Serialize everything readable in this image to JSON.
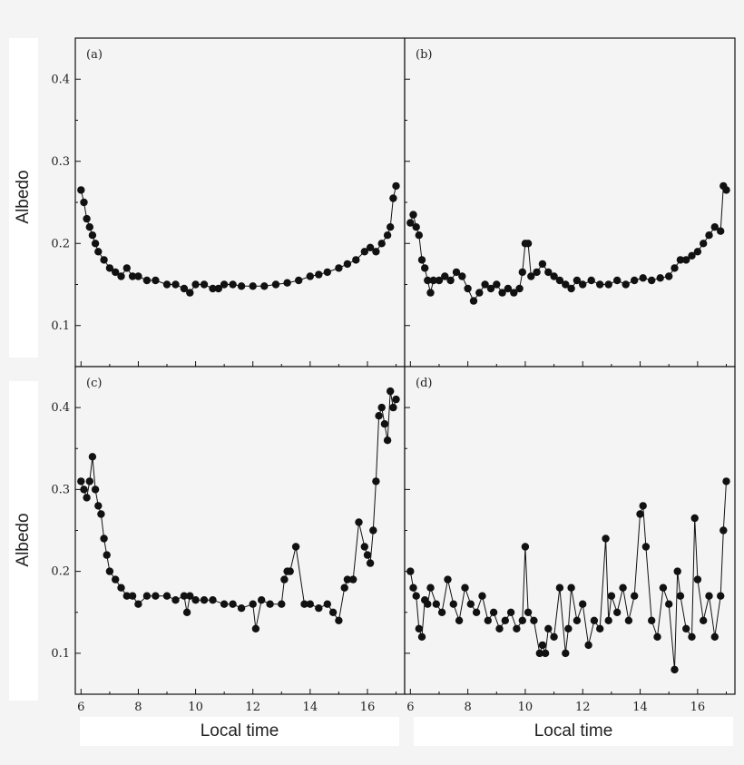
{
  "figure": {
    "ylabel_top": "Albedo",
    "ylabel_bottom": "Albedo",
    "xlabel_left": "Local time",
    "xlabel_right": "Local time"
  },
  "chart_data": [
    {
      "type": "line",
      "panel": "(a)",
      "xlim": [
        5.8,
        17.3
      ],
      "ylim": [
        0.05,
        0.45
      ],
      "xticks": [
        "6",
        "8",
        "10",
        "12",
        "14",
        "16"
      ],
      "yticks": [
        "0.1",
        "0.2",
        "0.3",
        "0.4"
      ],
      "marker": "filled-circle",
      "series": [
        {
          "x": [
            6.0,
            6.1,
            6.2,
            6.3,
            6.4,
            6.5,
            6.6,
            6.8,
            7.0,
            7.2,
            7.4,
            7.6,
            7.8,
            8.0,
            8.3,
            8.6,
            9.0,
            9.3,
            9.6,
            9.8,
            10.0,
            10.3,
            10.6,
            10.8,
            11.0,
            11.3,
            11.6,
            12.0,
            12.4,
            12.8,
            13.2,
            13.6,
            14.0,
            14.3,
            14.6,
            15.0,
            15.3,
            15.6,
            15.9,
            16.1,
            16.3,
            16.5,
            16.7,
            16.8,
            16.9,
            17.0
          ],
          "y": [
            0.265,
            0.25,
            0.23,
            0.22,
            0.21,
            0.2,
            0.19,
            0.18,
            0.17,
            0.165,
            0.16,
            0.17,
            0.16,
            0.16,
            0.155,
            0.155,
            0.15,
            0.15,
            0.145,
            0.14,
            0.15,
            0.15,
            0.145,
            0.145,
            0.15,
            0.15,
            0.148,
            0.148,
            0.148,
            0.15,
            0.152,
            0.155,
            0.16,
            0.162,
            0.165,
            0.17,
            0.175,
            0.18,
            0.19,
            0.195,
            0.19,
            0.2,
            0.21,
            0.22,
            0.255,
            0.27
          ]
        }
      ]
    },
    {
      "type": "line",
      "panel": "(b)",
      "xlim": [
        5.8,
        17.3
      ],
      "ylim": [
        0.05,
        0.45
      ],
      "xticks": [
        "6",
        "8",
        "10",
        "12",
        "14",
        "16"
      ],
      "yticks": [],
      "marker": "filled-circle",
      "series": [
        {
          "x": [
            6.0,
            6.1,
            6.2,
            6.3,
            6.4,
            6.5,
            6.6,
            6.7,
            6.8,
            7.0,
            7.2,
            7.4,
            7.6,
            7.8,
            8.0,
            8.2,
            8.4,
            8.6,
            8.8,
            9.0,
            9.2,
            9.4,
            9.6,
            9.8,
            9.9,
            10.0,
            10.1,
            10.2,
            10.4,
            10.6,
            10.8,
            11.0,
            11.2,
            11.4,
            11.6,
            11.8,
            12.0,
            12.3,
            12.6,
            12.9,
            13.2,
            13.5,
            13.8,
            14.1,
            14.4,
            14.7,
            15.0,
            15.2,
            15.4,
            15.6,
            15.8,
            16.0,
            16.2,
            16.4,
            16.6,
            16.8,
            16.9,
            17.0
          ],
          "y": [
            0.225,
            0.235,
            0.22,
            0.21,
            0.18,
            0.17,
            0.155,
            0.14,
            0.155,
            0.155,
            0.16,
            0.155,
            0.165,
            0.16,
            0.145,
            0.13,
            0.14,
            0.15,
            0.145,
            0.15,
            0.14,
            0.145,
            0.14,
            0.145,
            0.165,
            0.2,
            0.2,
            0.16,
            0.165,
            0.175,
            0.165,
            0.16,
            0.155,
            0.15,
            0.145,
            0.155,
            0.15,
            0.155,
            0.15,
            0.15,
            0.155,
            0.15,
            0.155,
            0.158,
            0.155,
            0.158,
            0.16,
            0.17,
            0.18,
            0.18,
            0.185,
            0.19,
            0.2,
            0.21,
            0.22,
            0.215,
            0.27,
            0.265
          ]
        }
      ]
    },
    {
      "type": "line",
      "panel": "(c)",
      "xlim": [
        5.8,
        17.3
      ],
      "ylim": [
        0.05,
        0.45
      ],
      "xticks": [
        "6",
        "8",
        "10",
        "12",
        "14",
        "16"
      ],
      "yticks": [
        "0.1",
        "0.2",
        "0.3",
        "0.4"
      ],
      "marker": "filled-circle",
      "series": [
        {
          "x": [
            6.0,
            6.1,
            6.2,
            6.3,
            6.4,
            6.5,
            6.6,
            6.7,
            6.8,
            6.9,
            7.0,
            7.2,
            7.4,
            7.6,
            7.8,
            8.0,
            8.3,
            8.6,
            9.0,
            9.3,
            9.6,
            9.7,
            9.8,
            10.0,
            10.3,
            10.6,
            11.0,
            11.3,
            11.6,
            12.0,
            12.1,
            12.3,
            12.6,
            13.0,
            13.1,
            13.2,
            13.3,
            13.5,
            13.8,
            14.0,
            14.3,
            14.6,
            14.8,
            15.0,
            15.2,
            15.3,
            15.5,
            15.7,
            15.9,
            16.0,
            16.1,
            16.2,
            16.3,
            16.4,
            16.5,
            16.6,
            16.7,
            16.8,
            16.9,
            17.0
          ],
          "y": [
            0.31,
            0.3,
            0.29,
            0.31,
            0.34,
            0.3,
            0.28,
            0.27,
            0.24,
            0.22,
            0.2,
            0.19,
            0.18,
            0.17,
            0.17,
            0.16,
            0.17,
            0.17,
            0.17,
            0.165,
            0.17,
            0.15,
            0.17,
            0.165,
            0.165,
            0.165,
            0.16,
            0.16,
            0.155,
            0.16,
            0.13,
            0.165,
            0.16,
            0.16,
            0.19,
            0.2,
            0.2,
            0.23,
            0.16,
            0.16,
            0.155,
            0.16,
            0.15,
            0.14,
            0.18,
            0.19,
            0.19,
            0.26,
            0.23,
            0.22,
            0.21,
            0.25,
            0.31,
            0.39,
            0.4,
            0.38,
            0.36,
            0.42,
            0.4,
            0.41
          ]
        }
      ]
    },
    {
      "type": "line",
      "panel": "(d)",
      "xlim": [
        5.8,
        17.3
      ],
      "ylim": [
        0.05,
        0.45
      ],
      "xticks": [
        "6",
        "8",
        "10",
        "12",
        "14",
        "16"
      ],
      "yticks": [],
      "marker": "filled-circle",
      "series": [
        {
          "x": [
            6.0,
            6.1,
            6.2,
            6.3,
            6.4,
            6.5,
            6.6,
            6.7,
            6.9,
            7.1,
            7.3,
            7.5,
            7.7,
            7.9,
            8.1,
            8.3,
            8.5,
            8.7,
            8.9,
            9.1,
            9.3,
            9.5,
            9.7,
            9.9,
            10.0,
            10.1,
            10.3,
            10.5,
            10.6,
            10.7,
            10.8,
            11.0,
            11.2,
            11.4,
            11.5,
            11.6,
            11.8,
            12.0,
            12.2,
            12.4,
            12.6,
            12.8,
            12.9,
            13.0,
            13.2,
            13.4,
            13.6,
            13.8,
            14.0,
            14.1,
            14.2,
            14.4,
            14.6,
            14.8,
            15.0,
            15.2,
            15.3,
            15.4,
            15.6,
            15.8,
            15.9,
            16.0,
            16.2,
            16.4,
            16.6,
            16.8,
            16.9,
            17.0
          ],
          "y": [
            0.2,
            0.18,
            0.17,
            0.13,
            0.12,
            0.165,
            0.16,
            0.18,
            0.16,
            0.15,
            0.19,
            0.16,
            0.14,
            0.18,
            0.16,
            0.15,
            0.17,
            0.14,
            0.15,
            0.13,
            0.14,
            0.15,
            0.13,
            0.14,
            0.23,
            0.15,
            0.14,
            0.1,
            0.11,
            0.1,
            0.13,
            0.12,
            0.18,
            0.1,
            0.13,
            0.18,
            0.14,
            0.16,
            0.11,
            0.14,
            0.13,
            0.24,
            0.14,
            0.17,
            0.15,
            0.18,
            0.14,
            0.17,
            0.27,
            0.28,
            0.23,
            0.14,
            0.12,
            0.18,
            0.16,
            0.08,
            0.2,
            0.17,
            0.13,
            0.12,
            0.265,
            0.19,
            0.14,
            0.17,
            0.12,
            0.17,
            0.25,
            0.31
          ]
        }
      ]
    }
  ]
}
